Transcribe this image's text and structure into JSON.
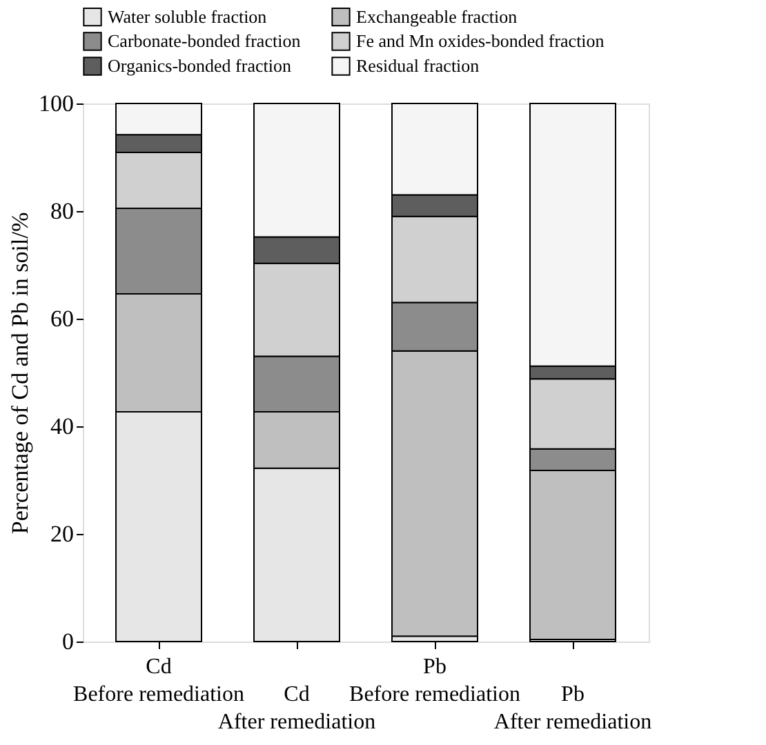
{
  "chart_data": {
    "type": "bar",
    "stacked": true,
    "ylabel": "Percentage of  Cd and Pb in soil/%",
    "categories": [
      "Cd\nBefore remediation",
      "Cd\n\nAfter remediation",
      "Pb\nBefore remediation",
      "Pb\n\nAfter remediation"
    ],
    "series": [
      {
        "name": "Water soluble fraction",
        "color": "#e6e6e6",
        "values": [
          42.7,
          32.2,
          1,
          0.4
        ]
      },
      {
        "name": "Exchangeable fraction",
        "color": "#bfbfbf",
        "values": [
          21.9,
          10.5,
          53,
          31.4
        ]
      },
      {
        "name": "Carbonate-bonded fraction",
        "color": "#8c8c8c",
        "values": [
          15.9,
          10.3,
          9,
          4
        ]
      },
      {
        "name": "Fe and Mn oxides-bonded fraction",
        "color": "#d0d0d0",
        "values": [
          10.4,
          17.3,
          16,
          13
        ]
      },
      {
        "name": "Organics-bonded fraction",
        "color": "#5e5e5e",
        "values": [
          3.3,
          4.9,
          4,
          2.4
        ]
      },
      {
        "name": "Residual fraction",
        "color": "#f5f5f5",
        "values": [
          5.8,
          24.8,
          17,
          48.8
        ]
      }
    ],
    "ylim": [
      0,
      100
    ],
    "yticks": [
      0,
      20,
      40,
      60,
      80,
      100
    ],
    "grid": false,
    "legend": "top"
  }
}
